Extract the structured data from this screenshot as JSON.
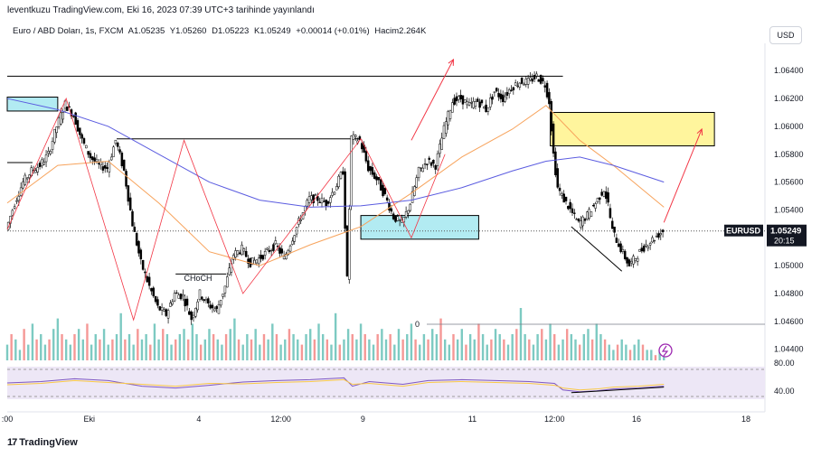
{
  "header": {
    "published": "leventkuzu TradingView.com, Eki 16, 2023 07:39 UTC+3 tarihinde yayınlandı"
  },
  "symbol_bar": {
    "name": "Euro / ABD Doları, 1s, FXCM",
    "open": "A1.05235",
    "high": "Y1.05260",
    "low": "D1.05223",
    "close": "K1.05249",
    "change": "+0.00014 (+0.01%)",
    "volume": "Hacim2.264K"
  },
  "currency_button": "USD",
  "price_label": {
    "symbol": "EURUSD",
    "price": "1.05249",
    "countdown": "20:15"
  },
  "annotations": {
    "choch": "CHoCH",
    "volume_zero": "0"
  },
  "rsi": {
    "tick_high": "80.00",
    "tick_mid": "40.00"
  },
  "footer": {
    "brand": "TradingView",
    "logo": "17"
  },
  "colors": {
    "bull": "#26a69a",
    "bear": "#ef5350",
    "candle": "#000000",
    "ma_orange": "#f7a35c",
    "ma_blue": "#5b5ce0",
    "zone_blue": "#b2ebf2",
    "zone_yellow": "#fff59d",
    "rsi_bg": "#ede7f6",
    "rsi_line": "#7e57c2",
    "rsi_ma": "#f9c846",
    "arrow": "#f23645"
  },
  "chart_data": {
    "type": "candlestick",
    "y_axis_ticks": [
      1.064,
      1.062,
      1.06,
      1.058,
      1.056,
      1.054,
      1.052,
      1.05,
      1.048,
      1.046,
      1.044
    ],
    "y_tick_labels": [
      "1.06400",
      "1.06200",
      "1.06000",
      "1.05800",
      "1.05600",
      "1.05400",
      "1.05200",
      "1.05000",
      "1.04800",
      "1.04600",
      "1.04400"
    ],
    "ylim": [
      1.0432,
      1.0657
    ],
    "x_tick_labels": [
      {
        "label": ":00",
        "t": 0
      },
      {
        "label": "Eki",
        "t": 19.5
      },
      {
        "label": "4",
        "t": 45.5
      },
      {
        "label": "12:00",
        "t": 65
      },
      {
        "label": "9",
        "t": 84.5
      },
      {
        "label": "11",
        "t": 110.5
      },
      {
        "label": "12:00",
        "t": 130
      },
      {
        "label": "16",
        "t": 149.5
      },
      {
        "label": "18",
        "t": 175.5
      }
    ],
    "price_path": [
      [
        0,
        1.0526
      ],
      [
        2,
        1.0545
      ],
      [
        4,
        1.056
      ],
      [
        6,
        1.0568
      ],
      [
        8,
        1.0572
      ],
      [
        10,
        1.058
      ],
      [
        12,
        1.06
      ],
      [
        14,
        1.0616
      ],
      [
        16,
        1.0608
      ],
      [
        18,
        1.059
      ],
      [
        20,
        1.0578
      ],
      [
        22,
        1.0572
      ],
      [
        24,
        1.057
      ],
      [
        26,
        1.059
      ],
      [
        28,
        1.0568
      ],
      [
        30,
        1.053
      ],
      [
        32,
        1.0502
      ],
      [
        34,
        1.0485
      ],
      [
        36,
        1.047
      ],
      [
        38,
        1.0465
      ],
      [
        40,
        1.048
      ],
      [
        42,
        1.0478
      ],
      [
        44,
        1.0462
      ],
      [
        46,
        1.048
      ],
      [
        48,
        1.0472
      ],
      [
        50,
        1.0468
      ],
      [
        52,
        1.0485
      ],
      [
        54,
        1.0508
      ],
      [
        56,
        1.0512
      ],
      [
        58,
        1.0502
      ],
      [
        60,
        1.0505
      ],
      [
        62,
        1.051
      ],
      [
        64,
        1.0515
      ],
      [
        66,
        1.0505
      ],
      [
        68,
        1.052
      ],
      [
        70,
        1.0535
      ],
      [
        72,
        1.0548
      ],
      [
        74,
        1.0548
      ],
      [
        76,
        1.0545
      ],
      [
        78,
        1.0555
      ],
      [
        80,
        1.0568
      ],
      [
        81,
        1.049
      ],
      [
        82,
        1.0592
      ],
      [
        84,
        1.059
      ],
      [
        86,
        1.057
      ],
      [
        88,
        1.0562
      ],
      [
        90,
        1.055
      ],
      [
        92,
        1.0535
      ],
      [
        94,
        1.053
      ],
      [
        96,
        1.0545
      ],
      [
        98,
        1.0568
      ],
      [
        100,
        1.0575
      ],
      [
        102,
        1.0572
      ],
      [
        104,
        1.0598
      ],
      [
        106,
        1.0618
      ],
      [
        108,
        1.062
      ],
      [
        110,
        1.0615
      ],
      [
        112,
        1.0618
      ],
      [
        114,
        1.0612
      ],
      [
        116,
        1.0625
      ],
      [
        118,
        1.062
      ],
      [
        120,
        1.0628
      ],
      [
        122,
        1.0632
      ],
      [
        124,
        1.0632
      ],
      [
        126,
        1.0636
      ],
      [
        128,
        1.063
      ],
      [
        129,
        1.0618
      ],
      [
        130,
        1.058
      ],
      [
        131,
        1.0556
      ],
      [
        132,
        1.055
      ],
      [
        134,
        1.054
      ],
      [
        136,
        1.053
      ],
      [
        138,
        1.0536
      ],
      [
        140,
        1.0545
      ],
      [
        142,
        1.0555
      ],
      [
        143,
        1.0544
      ],
      [
        144,
        1.0525
      ],
      [
        146,
        1.0512
      ],
      [
        148,
        1.05
      ],
      [
        150,
        1.0508
      ],
      [
        152,
        1.0515
      ],
      [
        154,
        1.052
      ],
      [
        156,
        1.0525
      ]
    ],
    "series": [
      {
        "values_path": "ma_orange",
        "points": [
          [
            0,
            1.0545
          ],
          [
            12,
            1.0572
          ],
          [
            24,
            1.0575
          ],
          [
            36,
            1.0545
          ],
          [
            48,
            1.051
          ],
          [
            60,
            1.05
          ],
          [
            72,
            1.0515
          ],
          [
            84,
            1.0528
          ],
          [
            96,
            1.0552
          ],
          [
            108,
            1.0578
          ],
          [
            120,
            1.0598
          ],
          [
            128,
            1.0615
          ],
          [
            136,
            1.059
          ],
          [
            144,
            1.0572
          ],
          [
            156,
            1.0542
          ]
        ]
      },
      {
        "values_path": "ma_blue",
        "points": [
          [
            0,
            1.062
          ],
          [
            12,
            1.0612
          ],
          [
            24,
            1.06
          ],
          [
            36,
            1.058
          ],
          [
            48,
            1.056
          ],
          [
            60,
            1.0547
          ],
          [
            72,
            1.0542
          ],
          [
            84,
            1.0543
          ],
          [
            96,
            1.0547
          ],
          [
            108,
            1.0556
          ],
          [
            120,
            1.0568
          ],
          [
            128,
            1.0575
          ],
          [
            136,
            1.0578
          ],
          [
            144,
            1.0572
          ],
          [
            156,
            1.056
          ]
        ]
      }
    ],
    "zones": [
      {
        "color": "zone_blue",
        "t1": 0,
        "t2": 12,
        "p1": 1.0621,
        "p2": 1.0611
      },
      {
        "color": "zone_blue",
        "t1": 84,
        "t2": 112,
        "p1": 1.0536,
        "p2": 1.0519
      },
      {
        "color": "zone_yellow",
        "t1": 129,
        "t2": 168,
        "p1": 1.061,
        "p2": 1.0586
      }
    ],
    "horizontal_lines": [
      {
        "t1": 0,
        "t2": 132,
        "p": 1.0636
      },
      {
        "t1": 26,
        "t2": 84,
        "p": 1.0591
      },
      {
        "t1": 0,
        "t2": 6,
        "p": 1.0574
      },
      {
        "t1": 40,
        "t2": 52,
        "p": 1.0494
      }
    ],
    "dotted_price_line": 1.05249,
    "zigzag": [
      [
        0,
        1.0526
      ],
      [
        14,
        1.062
      ],
      [
        30,
        1.0461
      ],
      [
        42,
        1.059
      ],
      [
        56,
        1.048
      ],
      [
        84,
        1.0591
      ],
      [
        96,
        1.052
      ],
      [
        104,
        1.058
      ]
    ],
    "red_arrows": [
      [
        [
          96,
          1.059
        ],
        [
          106,
          1.0648
        ]
      ],
      [
        [
          156,
          1.0531
        ],
        [
          165,
          1.0598
        ]
      ]
    ],
    "divergence_lines": [
      [
        [
          134,
          1.0528
        ],
        [
          146,
          1.0496
        ]
      ]
    ],
    "volume": [
      3,
      5,
      4,
      2,
      6,
      3,
      7,
      4,
      5,
      3,
      4,
      6,
      8,
      5,
      4,
      3,
      5,
      6,
      4,
      7,
      3,
      5,
      4,
      6,
      3,
      4,
      5,
      9,
      4,
      5,
      3,
      6,
      4,
      5,
      3,
      7,
      4,
      6,
      5,
      3,
      4,
      5,
      6,
      4,
      7,
      5,
      3,
      4,
      6,
      5,
      4,
      3,
      5,
      6,
      8,
      4,
      3,
      5,
      4,
      6,
      3,
      5,
      4,
      7,
      5,
      3,
      4,
      6,
      5,
      4,
      3,
      5,
      6,
      4,
      7,
      5,
      4,
      3,
      9,
      3,
      4,
      6,
      5,
      4,
      7,
      5,
      4,
      3,
      5,
      6,
      4,
      5,
      3,
      6,
      4,
      5,
      7,
      4,
      3,
      5,
      4,
      6,
      5,
      8,
      4,
      3,
      5,
      4,
      6,
      3,
      5,
      4,
      7,
      5,
      3,
      4,
      6,
      5,
      4,
      3,
      5,
      6,
      10,
      5,
      4,
      3,
      5,
      6,
      4,
      7,
      5,
      3,
      4,
      6,
      5,
      4,
      3,
      5,
      6,
      4,
      7,
      5,
      4,
      3,
      2,
      3,
      4,
      3,
      2,
      3,
      4,
      3,
      2,
      2,
      1,
      2,
      3
    ],
    "rsi_points": [
      [
        0,
        55
      ],
      [
        8,
        58
      ],
      [
        16,
        64
      ],
      [
        24,
        60
      ],
      [
        32,
        48
      ],
      [
        40,
        44
      ],
      [
        48,
        50
      ],
      [
        56,
        57
      ],
      [
        64,
        60
      ],
      [
        72,
        62
      ],
      [
        80,
        66
      ],
      [
        82,
        48
      ],
      [
        86,
        58
      ],
      [
        94,
        52
      ],
      [
        100,
        60
      ],
      [
        108,
        62
      ],
      [
        116,
        60
      ],
      [
        124,
        58
      ],
      [
        130,
        54
      ],
      [
        132,
        40
      ],
      [
        136,
        36
      ],
      [
        140,
        38
      ],
      [
        144,
        42
      ],
      [
        150,
        44
      ],
      [
        156,
        48
      ]
    ]
  }
}
